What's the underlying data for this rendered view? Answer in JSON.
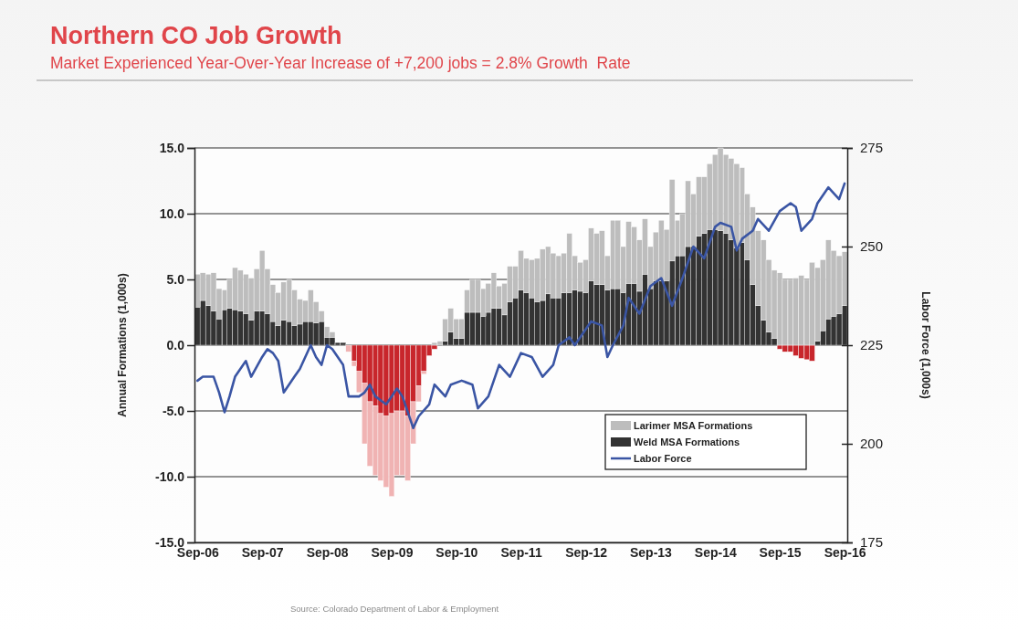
{
  "chart_data": {
    "type": "bar",
    "title": "Northern CO Job Growth",
    "subtitle": "Market Experienced Year-Over-Year Increase of +7,200 jobs = 2.8% Growth  Rate",
    "ylabel": "Annual Formations (1,000s)",
    "y2label": "Labor Force (1,000s)",
    "annotations": [
      "Source: Colorado Department of Labor & Employment"
    ],
    "stacked": true,
    "grid": "y",
    "legend": "bottom right",
    "x": [
      "2006-09",
      "2006-10",
      "2006-11",
      "2006-12",
      "2007-01",
      "2007-02",
      "2007-03",
      "2007-04",
      "2007-05",
      "2007-06",
      "2007-07",
      "2007-08",
      "2007-09",
      "2007-10",
      "2007-11",
      "2007-12",
      "2008-01",
      "2008-02",
      "2008-03",
      "2008-04",
      "2008-05",
      "2008-06",
      "2008-07",
      "2008-08",
      "2008-09",
      "2008-10",
      "2008-11",
      "2008-12",
      "2009-01",
      "2009-02",
      "2009-03",
      "2009-04",
      "2009-05",
      "2009-06",
      "2009-07",
      "2009-08",
      "2009-09",
      "2009-10",
      "2009-11",
      "2009-12",
      "2010-01",
      "2010-02",
      "2010-03",
      "2010-04",
      "2010-05",
      "2010-06",
      "2010-07",
      "2010-08",
      "2010-09",
      "2010-10",
      "2010-11",
      "2010-12",
      "2011-01",
      "2011-02",
      "2011-03",
      "2011-04",
      "2011-05",
      "2011-06",
      "2011-07",
      "2011-08",
      "2011-09",
      "2011-10",
      "2011-11",
      "2011-12",
      "2012-01",
      "2012-02",
      "2012-03",
      "2012-04",
      "2012-05",
      "2012-06",
      "2012-07",
      "2012-08",
      "2012-09",
      "2012-10",
      "2012-11",
      "2012-12",
      "2013-01",
      "2013-02",
      "2013-03",
      "2013-04",
      "2013-05",
      "2013-06",
      "2013-07",
      "2013-08",
      "2013-09",
      "2013-10",
      "2013-11",
      "2013-12",
      "2014-01",
      "2014-02",
      "2014-03",
      "2014-04",
      "2014-05",
      "2014-06",
      "2014-07",
      "2014-08",
      "2014-09",
      "2014-10",
      "2014-11",
      "2014-12",
      "2015-01",
      "2015-02",
      "2015-03",
      "2015-04",
      "2015-05",
      "2015-06",
      "2015-07",
      "2015-08",
      "2015-09",
      "2015-10",
      "2015-11",
      "2015-12",
      "2016-01",
      "2016-02",
      "2016-03",
      "2016-04",
      "2016-05",
      "2016-06",
      "2016-07",
      "2016-08",
      "2016-09"
    ],
    "series": [
      {
        "name": "Weld MSA Formations",
        "color": "#333333",
        "values": [
          2.9,
          3.4,
          3.0,
          2.6,
          2.0,
          2.7,
          2.8,
          2.7,
          2.6,
          2.4,
          1.9,
          2.6,
          2.6,
          2.4,
          1.8,
          1.5,
          1.9,
          1.8,
          1.5,
          1.6,
          1.8,
          1.8,
          1.7,
          1.8,
          0.6,
          0.6,
          0.2,
          0.2,
          0,
          -1.2,
          -2.0,
          -2.9,
          -4.3,
          -4.6,
          -5.2,
          -5.4,
          -5.2,
          -5.0,
          -5.0,
          -5.4,
          -4.3,
          -3.1,
          -2.0,
          -0.8,
          -0.3,
          0,
          0.3,
          1.0,
          0.5,
          0.5,
          2.5,
          2.5,
          2.5,
          2.2,
          2.5,
          2.8,
          2.8,
          2.3,
          3.3,
          3.6,
          4.2,
          4.0,
          3.6,
          3.3,
          3.4,
          3.9,
          3.6,
          3.6,
          4.0,
          4.0,
          4.2,
          4.1,
          4.0,
          4.9,
          4.6,
          4.6,
          4.2,
          4.3,
          4.3,
          4.0,
          4.7,
          4.7,
          4.1,
          5.4,
          4.3,
          4.9,
          4.9,
          4.9,
          6.4,
          6.8,
          6.8,
          7.5,
          7.5,
          8.3,
          8.5,
          8.8,
          8.8,
          8.7,
          8.5,
          8.0,
          7.4,
          7.8,
          6.5,
          4.6,
          3.0,
          1.9,
          1.0,
          0.5,
          -0.3,
          -0.5,
          -0.5,
          -0.8,
          -1.0,
          -1.1,
          -1.2,
          0.3,
          1.1,
          2.0,
          2.2,
          2.4,
          3.0
        ],
        "colors": [
          "#333333",
          "#333333",
          "#333333",
          "#333333",
          "#333333",
          "#333333",
          "#333333",
          "#333333",
          "#333333",
          "#333333",
          "#333333",
          "#333333",
          "#333333",
          "#333333",
          "#333333",
          "#333333",
          "#333333",
          "#333333",
          "#333333",
          "#333333",
          "#333333",
          "#333333",
          "#333333",
          "#333333",
          "#333333",
          "#333333",
          "#333333",
          "#333333",
          "#333333",
          "#c8262c",
          "#c8262c",
          "#c8262c",
          "#c8262c",
          "#c8262c",
          "#c8262c",
          "#c8262c",
          "#c8262c",
          "#c8262c",
          "#c8262c",
          "#c8262c",
          "#c8262c",
          "#c8262c",
          "#c8262c",
          "#c8262c",
          "#c8262c",
          "#333333",
          "#333333",
          "#333333",
          "#333333",
          "#333333",
          "#333333",
          "#333333",
          "#333333",
          "#333333",
          "#333333",
          "#333333",
          "#333333",
          "#333333",
          "#333333",
          "#333333",
          "#333333",
          "#333333",
          "#333333",
          "#333333",
          "#333333",
          "#333333",
          "#333333",
          "#333333",
          "#333333",
          "#333333",
          "#333333",
          "#333333",
          "#333333",
          "#333333",
          "#333333",
          "#333333",
          "#333333",
          "#333333",
          "#333333",
          "#333333",
          "#333333",
          "#333333",
          "#333333",
          "#333333",
          "#333333",
          "#333333",
          "#333333",
          "#333333",
          "#333333",
          "#333333",
          "#333333",
          "#333333",
          "#333333",
          "#333333",
          "#333333",
          "#333333",
          "#333333",
          "#333333",
          "#333333",
          "#333333",
          "#333333",
          "#333333",
          "#333333",
          "#333333",
          "#333333",
          "#333333",
          "#333333",
          "#333333",
          "#c8262c",
          "#c8262c",
          "#c8262c",
          "#c8262c",
          "#c8262c",
          "#c8262c",
          "#c8262c",
          "#333333",
          "#333333",
          "#333333",
          "#333333",
          "#333333",
          "#333333"
        ]
      },
      {
        "name": "Larimer MSA Formations",
        "color": "#bdbdbd",
        "values": [
          2.5,
          2.1,
          2.4,
          2.9,
          2.3,
          1.5,
          2.2,
          3.2,
          3.1,
          3.0,
          3.2,
          3.2,
          4.6,
          3.4,
          2.8,
          2.5,
          2.9,
          3.2,
          2.7,
          1.9,
          1.6,
          2.4,
          1.6,
          0.8,
          0.8,
          0.4,
          0,
          0,
          -0.5,
          -0.4,
          -1.6,
          -4.6,
          -4.9,
          -5.3,
          -5.1,
          -5.4,
          -6.3,
          -4.9,
          -4.9,
          -4.9,
          -3.2,
          -1.2,
          -0.2,
          0,
          0.2,
          0.3,
          1.7,
          1.8,
          1.5,
          1.5,
          1.7,
          2.5,
          2.5,
          2.1,
          2.2,
          2.7,
          1.7,
          2.4,
          2.7,
          2.4,
          3.0,
          2.6,
          2.9,
          3.3,
          3.9,
          3.6,
          3.4,
          3.2,
          3.0,
          4.5,
          2.6,
          2.2,
          2.5,
          4.0,
          3.9,
          4.1,
          2.6,
          5.2,
          5.2,
          3.5,
          4.7,
          4.3,
          3.9,
          4.2,
          3.2,
          3.7,
          4.6,
          3.9,
          6.2,
          2.7,
          3.2,
          5.0,
          4.0,
          4.5,
          4.3,
          5.0,
          5.7,
          6.3,
          6.0,
          6.2,
          6.4,
          5.7,
          5.0,
          5.9,
          5.7,
          6.1,
          5.5,
          5.2,
          5.5,
          5.0,
          5.0,
          5.1,
          5.3,
          5.0,
          6.3,
          5.6,
          5.4,
          6.0,
          5.0,
          4.4,
          4.1
        ],
        "colors": [
          "#bdbdbd",
          "#bdbdbd",
          "#bdbdbd",
          "#bdbdbd",
          "#bdbdbd",
          "#bdbdbd",
          "#bdbdbd",
          "#bdbdbd",
          "#bdbdbd",
          "#bdbdbd",
          "#bdbdbd",
          "#bdbdbd",
          "#bdbdbd",
          "#bdbdbd",
          "#bdbdbd",
          "#bdbdbd",
          "#bdbdbd",
          "#bdbdbd",
          "#bdbdbd",
          "#bdbdbd",
          "#bdbdbd",
          "#bdbdbd",
          "#bdbdbd",
          "#bdbdbd",
          "#bdbdbd",
          "#bdbdbd",
          "#bdbdbd",
          "#bdbdbd",
          "#f0b3b3",
          "#f0b3b3",
          "#f0b3b3",
          "#f0b3b3",
          "#f0b3b3",
          "#f0b3b3",
          "#f0b3b3",
          "#f0b3b3",
          "#f0b3b3",
          "#f0b3b3",
          "#f0b3b3",
          "#f0b3b3",
          "#f0b3b3",
          "#f0b3b3",
          "#f0b3b3",
          "#bdbdbd",
          "#bdbdbd",
          "#bdbdbd",
          "#bdbdbd",
          "#bdbdbd",
          "#bdbdbd",
          "#bdbdbd",
          "#bdbdbd",
          "#bdbdbd",
          "#bdbdbd",
          "#bdbdbd",
          "#bdbdbd",
          "#bdbdbd",
          "#bdbdbd",
          "#bdbdbd",
          "#bdbdbd",
          "#bdbdbd",
          "#bdbdbd",
          "#bdbdbd",
          "#bdbdbd",
          "#bdbdbd",
          "#bdbdbd",
          "#bdbdbd",
          "#bdbdbd",
          "#bdbdbd",
          "#bdbdbd",
          "#bdbdbd",
          "#bdbdbd",
          "#bdbdbd",
          "#bdbdbd",
          "#bdbdbd",
          "#bdbdbd",
          "#bdbdbd",
          "#bdbdbd",
          "#bdbdbd",
          "#bdbdbd",
          "#bdbdbd",
          "#bdbdbd",
          "#bdbdbd",
          "#bdbdbd",
          "#bdbdbd",
          "#bdbdbd",
          "#bdbdbd",
          "#bdbdbd",
          "#bdbdbd",
          "#bdbdbd",
          "#bdbdbd",
          "#bdbdbd",
          "#bdbdbd",
          "#bdbdbd",
          "#bdbdbd",
          "#bdbdbd",
          "#bdbdbd",
          "#bdbdbd",
          "#bdbdbd",
          "#bdbdbd",
          "#bdbdbd",
          "#bdbdbd",
          "#bdbdbd",
          "#bdbdbd",
          "#bdbdbd",
          "#bdbdbd",
          "#bdbdbd",
          "#bdbdbd",
          "#bdbdbd",
          "#bdbdbd",
          "#bdbdbd",
          "#bdbdbd",
          "#bdbdbd",
          "#bdbdbd",
          "#bdbdbd",
          "#bdbdbd",
          "#bdbdbd",
          "#bdbdbd",
          "#bdbdbd",
          "#bdbdbd",
          "#bdbdbd",
          "#bdbdbd"
        ]
      },
      {
        "name": "Labor Force",
        "type": "line",
        "axis": "y2",
        "color": "#3a55a4",
        "x": [
          "2006-09",
          "2006-10",
          "2006-12",
          "2007-01",
          "2007-02",
          "2007-03",
          "2007-04",
          "2007-06",
          "2007-07",
          "2007-09",
          "2007-10",
          "2007-11",
          "2007-12",
          "2008-01",
          "2008-03",
          "2008-04",
          "2008-06",
          "2008-07",
          "2008-08",
          "2008-09",
          "2008-10",
          "2008-12",
          "2009-01",
          "2009-03",
          "2009-04",
          "2009-05",
          "2009-06",
          "2009-08",
          "2009-09",
          "2009-10",
          "2009-11",
          "2010-01",
          "2010-02",
          "2010-04",
          "2010-05",
          "2010-07",
          "2010-08",
          "2010-10",
          "2010-12",
          "2011-01",
          "2011-03",
          "2011-05",
          "2011-07",
          "2011-09",
          "2011-11",
          "2012-01",
          "2012-03",
          "2012-04",
          "2012-06",
          "2012-07",
          "2012-10",
          "2012-12",
          "2013-01",
          "2013-02",
          "2013-04",
          "2013-05",
          "2013-07",
          "2013-09",
          "2013-11",
          "2014-01",
          "2014-03",
          "2014-05",
          "2014-07",
          "2014-09",
          "2014-10",
          "2014-12",
          "2015-01",
          "2015-02",
          "2015-04",
          "2015-05",
          "2015-07",
          "2015-09",
          "2015-11",
          "2015-12",
          "2016-01",
          "2016-03",
          "2016-04",
          "2016-06",
          "2016-08",
          "2016-09"
        ],
        "values": [
          216,
          217,
          217,
          213,
          208,
          212,
          217,
          221,
          217,
          222,
          224,
          223,
          221,
          213,
          217,
          219,
          225,
          222,
          220,
          225,
          224,
          220,
          212,
          212,
          213,
          215,
          212,
          210,
          212,
          214,
          212,
          204,
          207,
          210,
          215,
          212,
          215,
          216,
          215,
          209,
          212,
          220,
          217,
          223,
          222,
          217,
          220,
          225,
          227,
          225,
          231,
          230,
          222,
          225,
          230,
          237,
          233,
          240,
          242,
          235,
          242,
          250,
          247,
          255,
          256,
          255,
          249,
          252,
          254,
          257,
          254,
          259,
          261,
          260,
          254,
          257,
          261,
          265,
          262,
          266
        ]
      }
    ],
    "xlim": [
      "2006-08-15",
      "2016-09-16"
    ],
    "xticks": [
      {
        "value": "2006-09",
        "label": "Sep-06"
      },
      {
        "value": "2007-09",
        "label": "Sep-07"
      },
      {
        "value": "2008-09",
        "label": "Sep-08"
      },
      {
        "value": "2009-09",
        "label": "Sep-09"
      },
      {
        "value": "2010-09",
        "label": "Sep-10"
      },
      {
        "value": "2011-09",
        "label": "Sep-11"
      },
      {
        "value": "2012-09",
        "label": "Sep-12"
      },
      {
        "value": "2013-09",
        "label": "Sep-13"
      },
      {
        "value": "2014-09",
        "label": "Sep-14"
      },
      {
        "value": "2015-09",
        "label": "Sep-15"
      },
      {
        "value": "2016-09",
        "label": "Sep-16"
      }
    ],
    "ylim": [
      -15,
      15
    ],
    "yticks": [
      {
        "value": -15,
        "label": "-15.0"
      },
      {
        "value": -10,
        "label": "-10.0"
      },
      {
        "value": -5,
        "label": "-5.0"
      },
      {
        "value": 0,
        "label": "0.0"
      },
      {
        "value": 5,
        "label": "5.0"
      },
      {
        "value": 10,
        "label": "10.0"
      },
      {
        "value": 15,
        "label": "15.0"
      }
    ],
    "y2lim": [
      175,
      275
    ],
    "y2ticks": [
      175,
      200,
      225,
      250,
      275
    ]
  }
}
